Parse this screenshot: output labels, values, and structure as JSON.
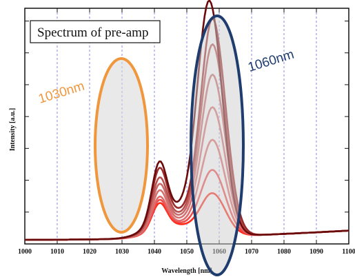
{
  "chart_data": {
    "type": "line",
    "title": "Spectrum of pre-amp",
    "xlabel": "Wavelength [nm]",
    "ylabel": "Intensity [a.u.]",
    "xlim": [
      1000,
      1100
    ],
    "ylim": [
      0,
      1
    ],
    "x_ticks": [
      "1000",
      "1010",
      "1020",
      "1030",
      "1040",
      "1050",
      "1060",
      "1070",
      "1080",
      "1090",
      "1100"
    ],
    "grid": "vertical-dashed",
    "series": [
      {
        "color": "#ff2a1a",
        "peak_x": 1058,
        "peak_y": 0.18,
        "shoulder_y": 0.11
      },
      {
        "color": "#f04a4a",
        "peak_x": 1058,
        "peak_y": 0.28,
        "shoulder_y": 0.12
      },
      {
        "color": "#e06a6a",
        "peak_x": 1058,
        "peak_y": 0.41,
        "shoulder_y": 0.13
      },
      {
        "color": "#d47070",
        "peak_x": 1058,
        "peak_y": 0.55,
        "shoulder_y": 0.15
      },
      {
        "color": "#c86a6a",
        "peak_x": 1058,
        "peak_y": 0.69,
        "shoulder_y": 0.17
      },
      {
        "color": "#b85050",
        "peak_x": 1058,
        "peak_y": 0.82,
        "shoulder_y": 0.19
      },
      {
        "color": "#9a2a2a",
        "peak_x": 1058,
        "peak_y": 0.93,
        "shoulder_y": 0.22
      },
      {
        "color": "#6a0a0a",
        "peak_x": 1057,
        "peak_y": 1.0,
        "shoulder_y": 0.24
      }
    ],
    "annotations": [
      {
        "text": "1030nm",
        "color": "#f0963c",
        "center_x": 1030
      },
      {
        "text": "1060nm",
        "color": "#1f3c6e",
        "center_x": 1060
      }
    ]
  }
}
